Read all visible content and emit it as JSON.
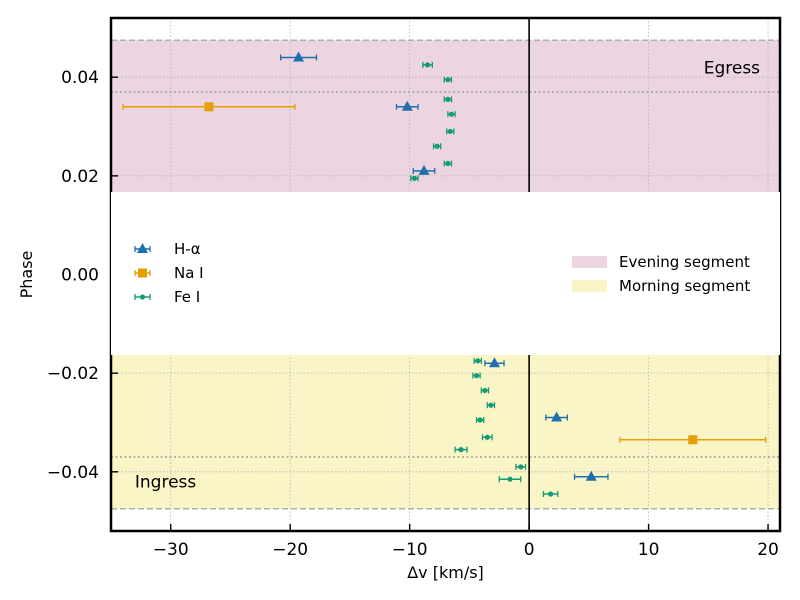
{
  "chart_data": {
    "type": "scatter",
    "xlabel": "Δv [km/s]",
    "ylabel": "Phase",
    "xlim": [
      -35,
      21
    ],
    "ylim": [
      -0.052,
      0.052
    ],
    "xticks": [
      -30,
      -20,
      -10,
      0,
      10,
      20
    ],
    "xtick_labels": [
      "−30",
      "−20",
      "−10",
      "0",
      "10",
      "20"
    ],
    "yticks": [
      -0.04,
      -0.02,
      0.0,
      0.02,
      0.04
    ],
    "ytick_labels": [
      "−0.04",
      "−0.02",
      "0.00",
      "0.02",
      "0.04"
    ],
    "grid": true,
    "shaded_regions": [
      {
        "name": "Evening segment",
        "y_from": 0.0,
        "y_to": 0.0475,
        "color": "#ecd5e1"
      },
      {
        "name": "Morning segment",
        "y_from": -0.0475,
        "y_to": 0.0,
        "color": "#f9f5c6"
      }
    ],
    "horizontal_lines": [
      {
        "y": 0.0475,
        "style": "dashed",
        "color": "#b0b0b0"
      },
      {
        "y": -0.0475,
        "style": "dashed",
        "color": "#b0b0b0"
      },
      {
        "y": 0.037,
        "style": "dotted",
        "color": "#a0a0a0"
      },
      {
        "y": -0.037,
        "style": "dotted",
        "color": "#a0a0a0"
      }
    ],
    "vertical_line": {
      "x": 0,
      "color": "#000000"
    },
    "annotations": [
      {
        "text": "Egress",
        "x": 20,
        "y": 0.042,
        "anchor": "end"
      },
      {
        "text": "Ingress",
        "x": -33,
        "y": -0.042,
        "anchor": "start"
      }
    ],
    "series": [
      {
        "name": "H-α",
        "marker": "triangle",
        "color": "#1f6fae",
        "points": [
          {
            "x": -19.3,
            "y": 0.044,
            "xerr": 1.5
          },
          {
            "x": -10.2,
            "y": 0.034,
            "xerr": 0.9
          },
          {
            "x": -8.8,
            "y": 0.021,
            "xerr": 0.9
          },
          {
            "x": -2.9,
            "y": -0.018,
            "xerr": 0.8
          },
          {
            "x": 2.3,
            "y": -0.029,
            "xerr": 0.9
          },
          {
            "x": 5.2,
            "y": -0.041,
            "xerr": 1.4
          }
        ]
      },
      {
        "name": "Na I",
        "marker": "square",
        "color": "#e69f00",
        "points": [
          {
            "x": -26.8,
            "y": 0.034,
            "xerr": 7.2
          },
          {
            "x": 13.7,
            "y": -0.0335,
            "xerr": 6.1
          }
        ]
      },
      {
        "name": "Fe I",
        "marker": "circle",
        "color": "#159a76",
        "points": [
          {
            "x": -8.5,
            "y": 0.0425,
            "xerr": 0.4
          },
          {
            "x": -6.8,
            "y": 0.0395,
            "xerr": 0.3
          },
          {
            "x": -6.8,
            "y": 0.0355,
            "xerr": 0.3
          },
          {
            "x": -6.5,
            "y": 0.0325,
            "xerr": 0.3
          },
          {
            "x": -6.6,
            "y": 0.029,
            "xerr": 0.3
          },
          {
            "x": -7.7,
            "y": 0.026,
            "xerr": 0.3
          },
          {
            "x": -6.8,
            "y": 0.0225,
            "xerr": 0.3
          },
          {
            "x": -9.6,
            "y": 0.0195,
            "xerr": 0.3
          },
          {
            "x": -4.3,
            "y": -0.0175,
            "xerr": 0.3
          },
          {
            "x": -4.4,
            "y": -0.0205,
            "xerr": 0.3
          },
          {
            "x": -3.7,
            "y": -0.0235,
            "xerr": 0.3
          },
          {
            "x": -3.2,
            "y": -0.0265,
            "xerr": 0.3
          },
          {
            "x": -4.1,
            "y": -0.0295,
            "xerr": 0.3
          },
          {
            "x": -3.5,
            "y": -0.033,
            "xerr": 0.4
          },
          {
            "x": -5.7,
            "y": -0.0355,
            "xerr": 0.5
          },
          {
            "x": -0.7,
            "y": -0.039,
            "xerr": 0.4
          },
          {
            "x": -1.6,
            "y": -0.0415,
            "xerr": 0.9
          },
          {
            "x": 1.8,
            "y": -0.0445,
            "xerr": 0.6
          }
        ]
      }
    ],
    "legend_left": [
      "H-α",
      "Na I",
      "Fe I"
    ],
    "legend_right": [
      "Evening segment",
      "Morning segment"
    ]
  }
}
